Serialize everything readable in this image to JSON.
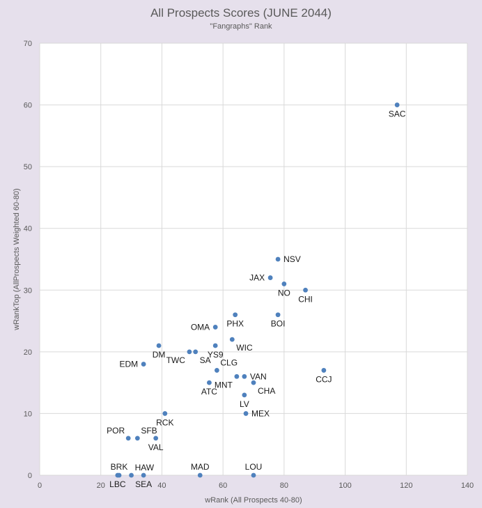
{
  "chart_data": {
    "type": "scatter",
    "title": "All Prospects Scores (JUNE 2044)",
    "subtitle": "\"Fangraphs\" Rank",
    "xlabel": "wRank (All Prospects 40-80)",
    "ylabel": "wRankTop (AllProspects Weighted 60-80)",
    "xlim": [
      0,
      140
    ],
    "ylim": [
      0,
      70
    ],
    "xticks": [
      0,
      20,
      40,
      60,
      80,
      100,
      120,
      140
    ],
    "yticks": [
      0,
      10,
      20,
      30,
      40,
      50,
      60,
      70
    ],
    "grid": true,
    "marker_color": "#4f81bd",
    "points": [
      {
        "label": "SAC",
        "x": 117,
        "y": 60,
        "label_pos": "below"
      },
      {
        "label": "NSV",
        "x": 78,
        "y": 35,
        "label_pos": "right"
      },
      {
        "label": "JAX",
        "x": 75.5,
        "y": 32,
        "label_pos": "left"
      },
      {
        "label": "NO",
        "x": 80,
        "y": 31,
        "label_pos": "below"
      },
      {
        "label": "CHI",
        "x": 87,
        "y": 30,
        "label_pos": "below"
      },
      {
        "label": "PHX",
        "x": 64,
        "y": 26,
        "label_pos": "below"
      },
      {
        "label": "BOI",
        "x": 78,
        "y": 26,
        "label_pos": "below"
      },
      {
        "label": "OMA",
        "x": 57.5,
        "y": 24,
        "label_pos": "left"
      },
      {
        "label": "WIC",
        "x": 63,
        "y": 22,
        "label_pos": "below-right"
      },
      {
        "label": "DM",
        "x": 39,
        "y": 21,
        "label_pos": "below"
      },
      {
        "label": "YS9",
        "x": 57.5,
        "y": 21,
        "label_pos": "below"
      },
      {
        "label": "TWC",
        "x": 49,
        "y": 20,
        "label_pos": "below-left"
      },
      {
        "label": "SA",
        "x": 51,
        "y": 20,
        "label_pos": "below-right"
      },
      {
        "label": "EDM",
        "x": 34,
        "y": 18,
        "label_pos": "left"
      },
      {
        "label": "CLG",
        "x": 58,
        "y": 17,
        "label_pos": "above-right"
      },
      {
        "label": "CCJ",
        "x": 93,
        "y": 17,
        "label_pos": "below"
      },
      {
        "label": "VAN",
        "x": 67,
        "y": 16,
        "label_pos": "right"
      },
      {
        "label": "MNT",
        "x": 64.5,
        "y": 16,
        "label_pos": "below-left"
      },
      {
        "label": "ATC",
        "x": 55.5,
        "y": 15,
        "label_pos": "below"
      },
      {
        "label": "CHA",
        "x": 70,
        "y": 15,
        "label_pos": "below-right"
      },
      {
        "label": "LV",
        "x": 67,
        "y": 13,
        "label_pos": "below"
      },
      {
        "label": "MEX",
        "x": 67.5,
        "y": 10,
        "label_pos": "right"
      },
      {
        "label": "RCK",
        "x": 41,
        "y": 10,
        "label_pos": "below"
      },
      {
        "label": "POR",
        "x": 29,
        "y": 6,
        "label_pos": "above-left"
      },
      {
        "label": "SFB",
        "x": 32,
        "y": 6,
        "label_pos": "above-right"
      },
      {
        "label": "VAL",
        "x": 38,
        "y": 6,
        "label_pos": "below"
      },
      {
        "label": "BRK",
        "x": 26,
        "y": 0,
        "label_pos": "above"
      },
      {
        "label": "LBC",
        "x": 25.5,
        "y": 0,
        "label_pos": "below"
      },
      {
        "label": "HAW",
        "x": 30,
        "y": 0,
        "label_pos": "above-right"
      },
      {
        "label": "SEA",
        "x": 34,
        "y": 0,
        "label_pos": "below"
      },
      {
        "label": "MAD",
        "x": 52.5,
        "y": 0,
        "label_pos": "above"
      },
      {
        "label": "LOU",
        "x": 70,
        "y": 0,
        "label_pos": "above"
      }
    ]
  }
}
